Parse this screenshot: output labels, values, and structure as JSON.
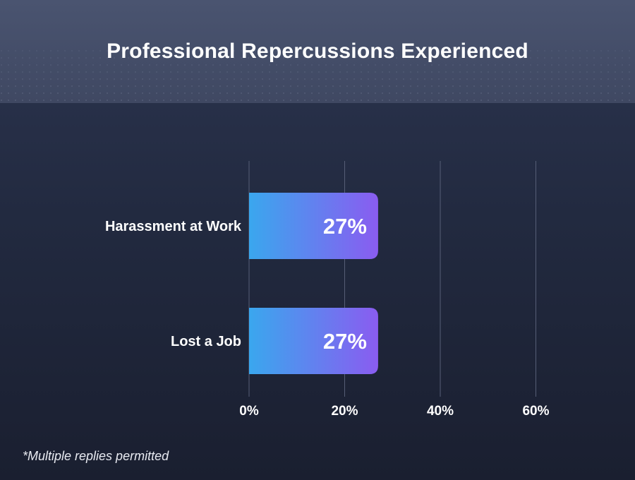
{
  "title": "Professional Repercussions Experienced",
  "footnote": "*Multiple replies permitted",
  "colors": {
    "bar_gradient_start": "#3aa7ee",
    "bar_gradient_end": "#8a5cf0",
    "gridline": "#565e76",
    "header_bg": "#444d68",
    "body_bg": "#222a40"
  },
  "chart_data": {
    "type": "bar",
    "orientation": "horizontal",
    "categories": [
      "Harassment at Work",
      "Lost a Job"
    ],
    "values": [
      27,
      27
    ],
    "value_labels": [
      "27%",
      "27%"
    ],
    "xlim": [
      0,
      60
    ],
    "x_ticks": [
      0,
      20,
      40,
      60
    ],
    "x_tick_labels": [
      "0%",
      "20%",
      "40%",
      "60%"
    ],
    "grid": true,
    "legend": "none"
  }
}
